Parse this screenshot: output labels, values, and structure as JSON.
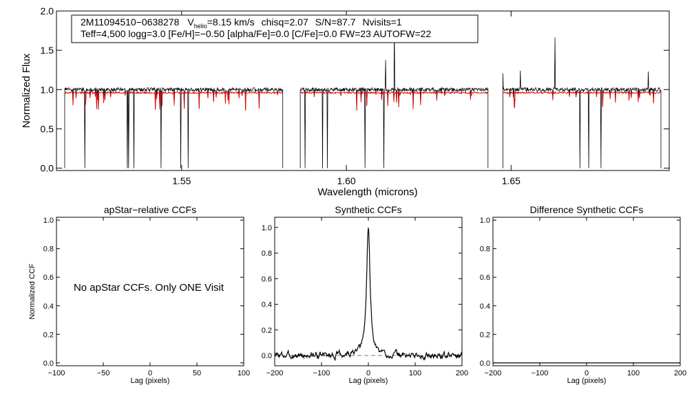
{
  "chart_data": [
    {
      "type": "line",
      "title": "",
      "xlabel": "Wavelength (microns)",
      "ylabel": "Normalized Flux",
      "xlim": [
        1.512,
        1.698
      ],
      "ylim": [
        -0.03,
        2.0
      ],
      "xticks": [
        1.55,
        1.6,
        1.65
      ],
      "xtick_labels": [
        "1.55",
        "1.60",
        "1.65"
      ],
      "yticks": [
        0.0,
        0.5,
        1.0,
        1.5,
        2.0
      ],
      "ytick_labels": [
        "0.0",
        "0.5",
        "1.0",
        "1.5",
        "2.0"
      ],
      "chips": [
        [
          1.5145,
          1.5807
        ],
        [
          1.586,
          1.643
        ],
        [
          1.6475,
          1.6955
        ]
      ],
      "series": [
        {
          "name": "observed spectrum",
          "color": "#000000",
          "continuum": 1.0
        },
        {
          "name": "model spectrum",
          "color": "#dd0000",
          "continuum": 0.96
        }
      ],
      "annotation": {
        "object": "2M11094510−0638278",
        "vhelio_prefix": "V",
        "vhelio_sub": "helio",
        "vhelio_value": "=8.15 km/s",
        "chisq": "chisq=2.07",
        "sn": "S/N=87.7",
        "nvisits": "Nvisits=1",
        "line2": "Teff=4,500 logg=3.0 [Fe/H]=−0.50 [alpha/Fe]=0.0 [C/Fe]=0.0 FW=23 AUTOFW=22"
      }
    },
    {
      "type": "line",
      "title": "apStar−relative CCFs",
      "xlabel": "Lag (pixels)",
      "ylabel": "Normalized CCF",
      "xlim": [
        -100,
        100
      ],
      "ylim": [
        -0.02,
        1.02
      ],
      "xticks": [
        -100,
        -50,
        0,
        50,
        100
      ],
      "xtick_labels": [
        "−100",
        "−50",
        "0",
        "50",
        "100"
      ],
      "yticks": [
        0.0,
        0.2,
        0.4,
        0.6,
        0.8,
        1.0
      ],
      "ytick_labels": [
        "0.0",
        "0.2",
        "0.4",
        "0.6",
        "0.8",
        "1.0"
      ],
      "message": "No apStar CCFs.  Only ONE Visit"
    },
    {
      "type": "line",
      "title": "Synthetic CCFs",
      "xlabel": "Lag (pixels)",
      "ylabel": "",
      "xlim": [
        -200,
        200
      ],
      "ylim": [
        -0.08,
        1.08
      ],
      "xticks": [
        -200,
        -100,
        0,
        100,
        200
      ],
      "xtick_labels": [
        "−200",
        "−100",
        "0",
        "100",
        "200"
      ],
      "yticks": [
        0.0,
        0.2,
        0.4,
        0.6,
        0.8,
        1.0
      ],
      "ytick_labels": [
        "0.0",
        "0.2",
        "0.4",
        "0.6",
        "0.8",
        "1.0"
      ],
      "peak_lag": 0,
      "peak_value": 1.0,
      "baseline": 0.0,
      "noise_level": 0.03
    },
    {
      "type": "line",
      "title": "Difference Synthetic CCFs",
      "xlabel": "Lag (pixels)",
      "ylabel": "",
      "xlim": [
        -200,
        200
      ],
      "ylim": [
        -0.02,
        1.02
      ],
      "xticks": [
        -200,
        -100,
        0,
        100,
        200
      ],
      "xtick_labels": [
        "−200",
        "−100",
        "0",
        "100",
        "200"
      ],
      "yticks": [
        0.0,
        0.2,
        0.4,
        0.6,
        0.8,
        1.0
      ],
      "ytick_labels": [
        "0.0",
        "0.2",
        "0.4",
        "0.6",
        "0.8",
        "1.0"
      ],
      "baseline": 0.0
    }
  ]
}
